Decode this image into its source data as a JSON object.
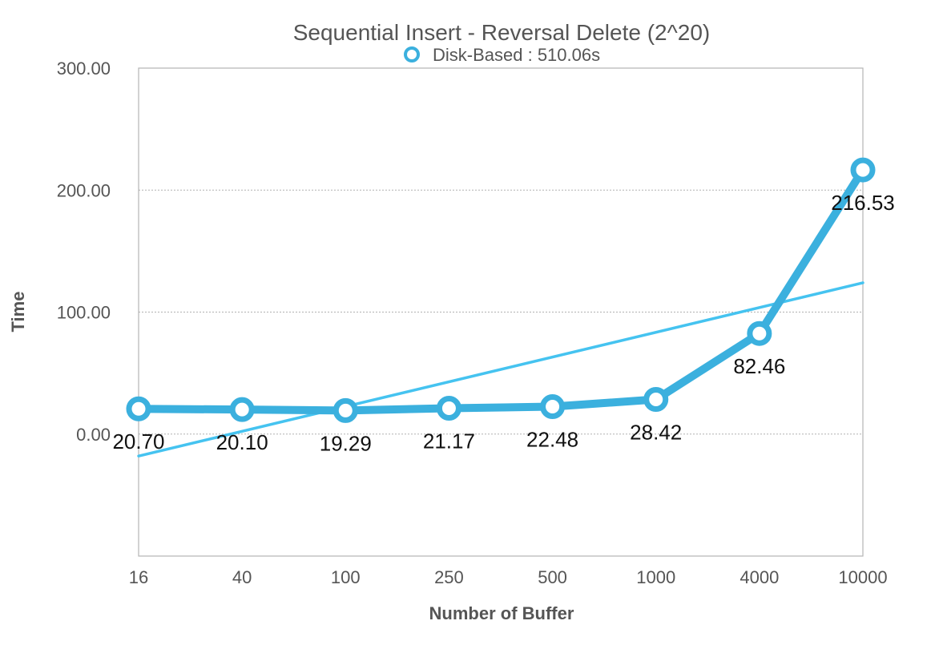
{
  "chart_data": {
    "type": "line",
    "title": "Sequential Insert - Reversal Delete (2^20)",
    "xlabel": "Number of Buffer",
    "ylabel": "Time",
    "categories": [
      "16",
      "40",
      "100",
      "250",
      "500",
      "1000",
      "4000",
      "10000"
    ],
    "y_tick_labels": [
      "300.00",
      "200.00",
      "100.00",
      "0.00"
    ],
    "y_ticks": [
      300,
      200,
      100,
      0
    ],
    "ylim": [
      -100,
      300
    ],
    "grid": "horizontal dotted",
    "legend_position": "top-center",
    "series": [
      {
        "name": "Disk-Based : 510.06s",
        "values": [
          20.7,
          20.1,
          19.29,
          21.17,
          22.48,
          28.42,
          82.46,
          216.53
        ],
        "labels": [
          "20.70",
          "20.10",
          "19.29",
          "21.17",
          "22.48",
          "28.42",
          "82.46",
          "216.53"
        ],
        "color": "#3BB0DE"
      }
    ],
    "trendline": {
      "type": "linear",
      "start_value": -18,
      "end_value": 124,
      "color": "#45C3F0"
    }
  }
}
